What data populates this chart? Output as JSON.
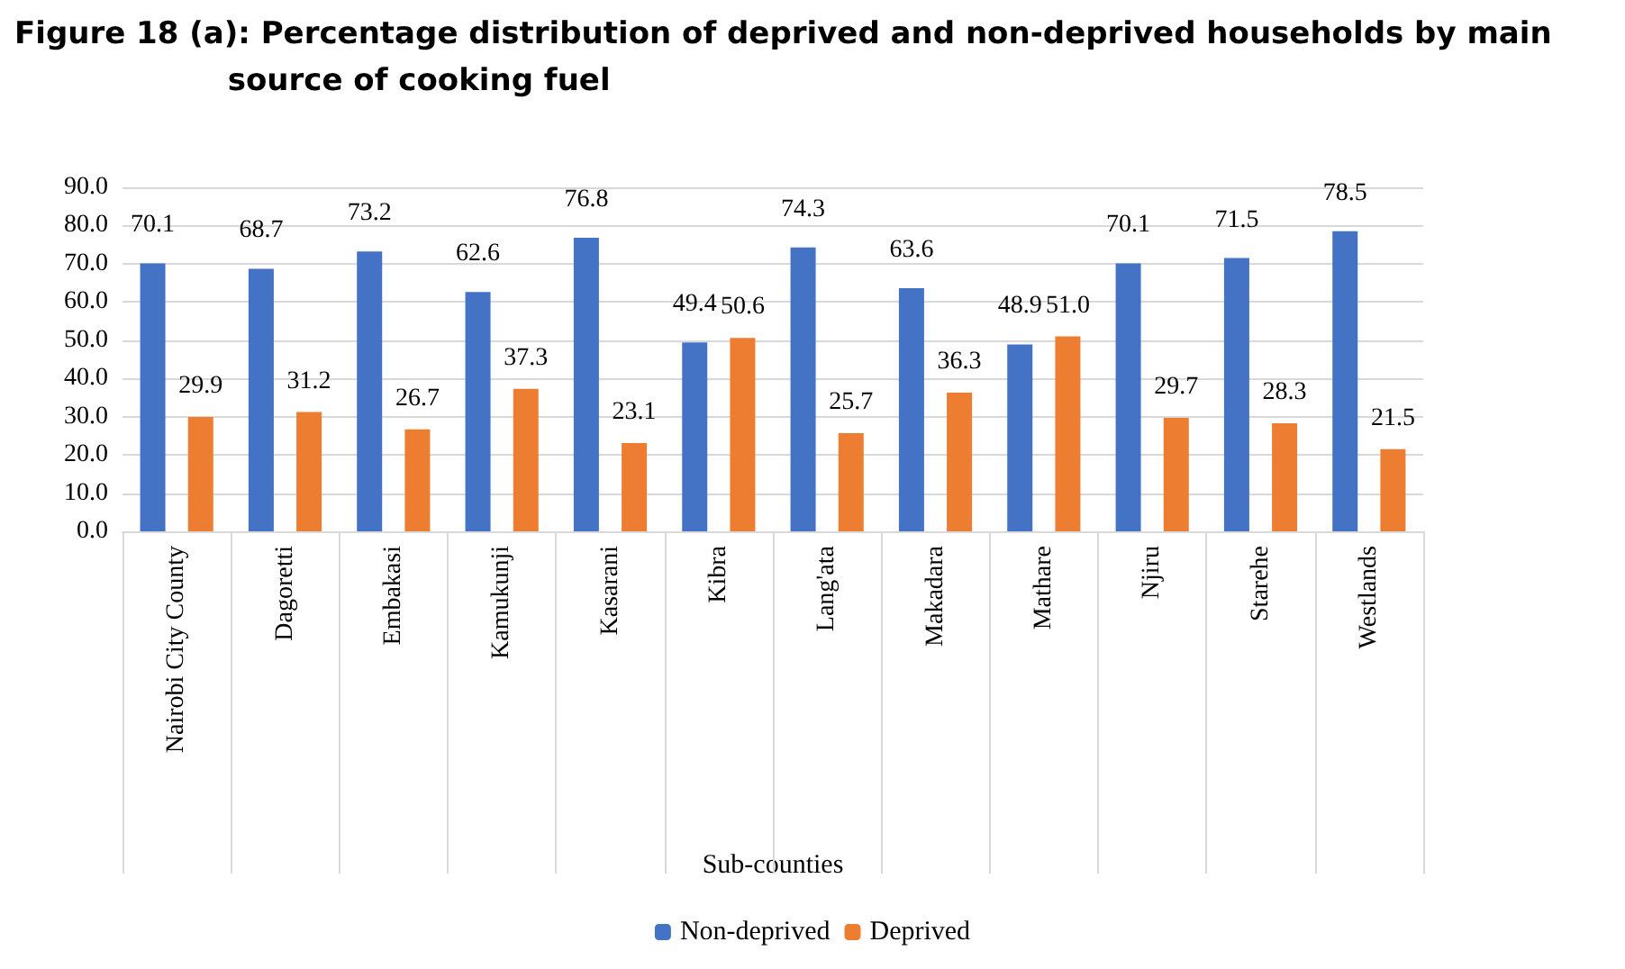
{
  "chart_data": {
    "type": "bar",
    "title": "Figure 18 (a): Percentage distribution of deprived and non-deprived households by main\nsource of cooking fuel",
    "xlabel": "Sub-counties",
    "categories": [
      "Nairobi City County",
      "Dagoretti",
      "Embakasi",
      "Kamukunji",
      "Kasarani",
      "Kibra",
      "Lang'ata",
      "Makadara",
      "Mathare",
      "Njiru",
      "Starehe",
      "Westlands"
    ],
    "series": [
      {
        "name": "Non-deprived",
        "color": "#4472c4",
        "values": [
          70.1,
          68.7,
          73.2,
          62.6,
          76.8,
          49.4,
          74.3,
          63.6,
          48.9,
          70.1,
          71.5,
          78.5
        ],
        "value_labels": [
          "70.1",
          "68.7",
          "73.2",
          "62.6",
          "76.8",
          "49.4",
          "74.3",
          "63.6",
          "48.9",
          "70.1",
          "71.5",
          "78.5"
        ]
      },
      {
        "name": "Deprived",
        "color": "#ed7d31",
        "values": [
          29.9,
          31.2,
          26.7,
          37.3,
          23.1,
          50.6,
          25.7,
          36.3,
          51.0,
          29.7,
          28.3,
          21.5
        ],
        "value_labels": [
          "29.9",
          "31.2",
          "26.7",
          "37.3",
          "23.1",
          "50.6",
          "25.7",
          "36.3",
          "51.0",
          "29.7",
          "28.3",
          "21.5"
        ]
      }
    ],
    "ylim": [
      0,
      90
    ],
    "yticks": [
      {
        "value": 0,
        "label": "0.0"
      },
      {
        "value": 10,
        "label": "10.0"
      },
      {
        "value": 20,
        "label": "20.0"
      },
      {
        "value": 30,
        "label": "30.0"
      },
      {
        "value": 40,
        "label": "40.0"
      },
      {
        "value": 50,
        "label": "50.0"
      },
      {
        "value": 60,
        "label": "60.0"
      },
      {
        "value": 70,
        "label": "70.0"
      },
      {
        "value": 80,
        "label": "80.0"
      },
      {
        "value": 90,
        "label": "90.0"
      }
    ],
    "grid": "y",
    "legend": "bottom"
  }
}
